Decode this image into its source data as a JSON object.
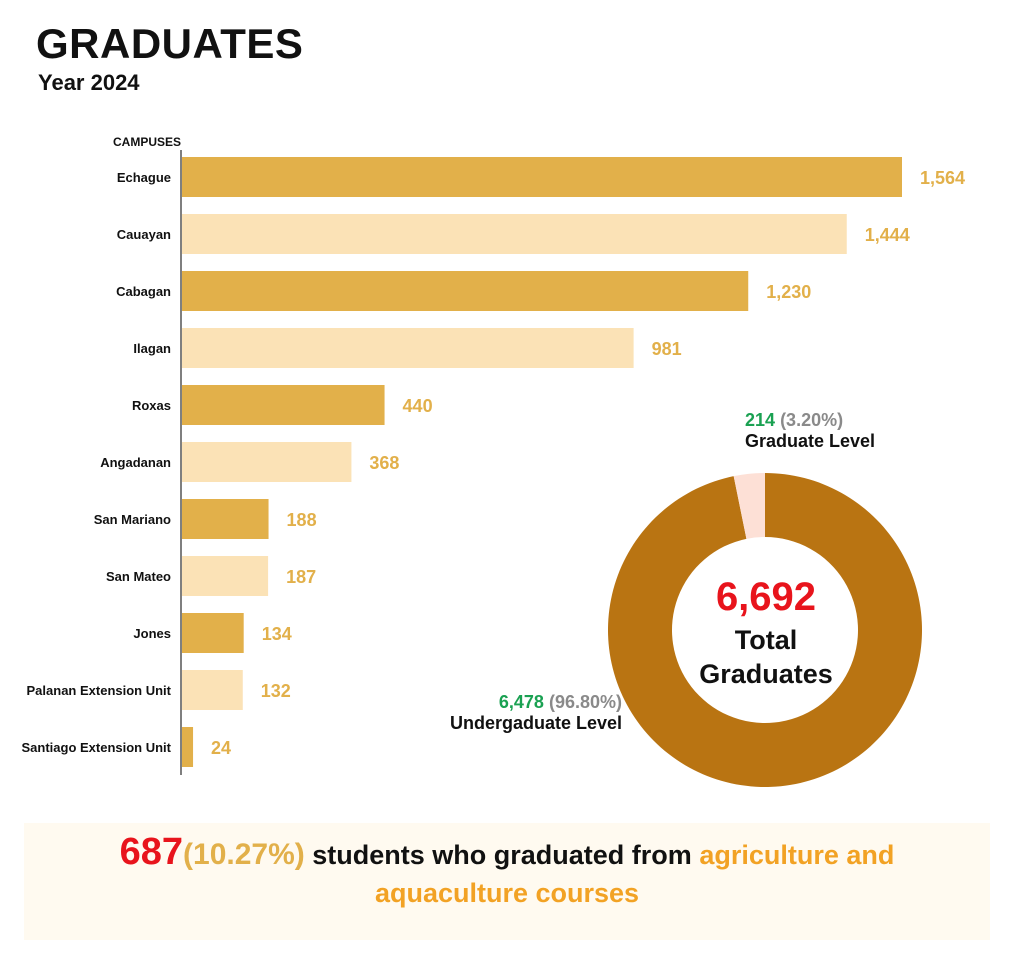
{
  "header": {
    "title": "GRADUATES",
    "subtitle": "Year 2024"
  },
  "colors": {
    "dark_bar": "#e2b04a",
    "light_bar": "#fbe2b6",
    "value_label": "#e2b04a",
    "donut_main": "#b97412",
    "donut_minor": "#fde0d6",
    "highlight_red": "#e8141c",
    "green": "#1aa152",
    "orange": "#f2a224"
  },
  "chart_data": [
    {
      "type": "bar",
      "orientation": "horizontal",
      "axis_label": "CAMPUSES",
      "categories": [
        "Echague",
        "Cauayan",
        "Cabagan",
        "Ilagan",
        "Roxas",
        "Angadanan",
        "San Mariano",
        "San Mateo",
        "Jones",
        "Palanan Extension Unit",
        "Santiago Extension Unit"
      ],
      "values": [
        1564,
        1444,
        1230,
        981,
        440,
        368,
        188,
        187,
        134,
        132,
        24
      ],
      "value_labels": [
        "1,564",
        "1,444",
        "1,230",
        "981",
        "440",
        "368",
        "188",
        "187",
        "134",
        "132",
        "24"
      ],
      "xlim": [
        0,
        1564
      ],
      "grid": false
    },
    {
      "type": "pie",
      "style": "donut",
      "slices": [
        {
          "label": "Undergaduate Level",
          "count_label": "6,478",
          "pct_label": "(96.80%)",
          "value": 6478
        },
        {
          "label": "Graduate Level",
          "count_label": "214",
          "pct_label": "(3.20%)",
          "value": 214
        }
      ],
      "center_value": "6,692",
      "center_label_line1": "Total",
      "center_label_line2": "Graduates"
    }
  ],
  "footer": {
    "count": "687",
    "pct": "(10.27%)",
    "text": " students who graduated from ",
    "highlight_line1": "agriculture and",
    "highlight_line2": "aquaculture courses"
  }
}
